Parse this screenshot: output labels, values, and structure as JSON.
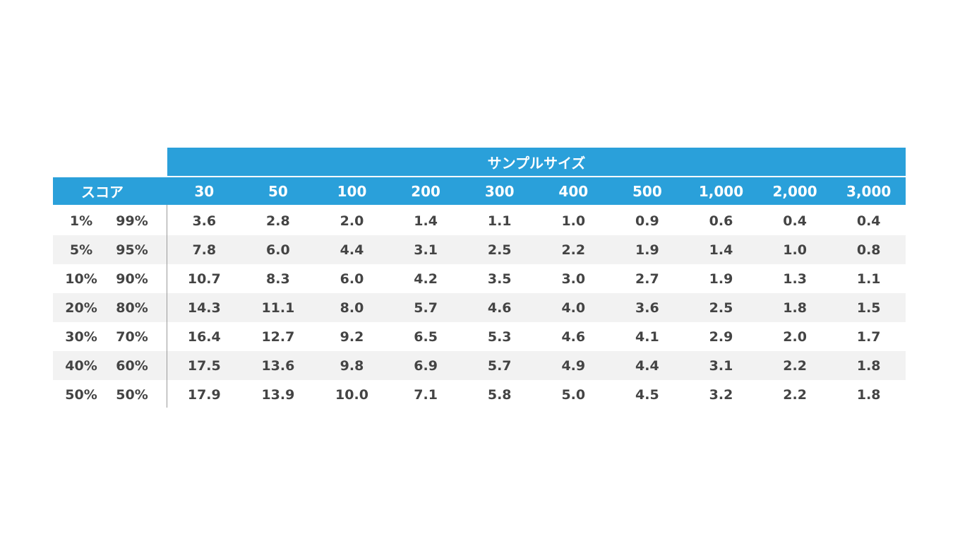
{
  "table": {
    "group_header": "サンプルサイズ",
    "row_header": "スコア",
    "columns": [
      "30",
      "50",
      "100",
      "200",
      "300",
      "400",
      "500",
      "1,000",
      "2,000",
      "3,000"
    ],
    "rows": [
      {
        "low": "1%",
        "high": "99%",
        "values": [
          "3.6",
          "2.8",
          "2.0",
          "1.4",
          "1.1",
          "1.0",
          "0.9",
          "0.6",
          "0.4",
          "0.4"
        ]
      },
      {
        "low": "5%",
        "high": "95%",
        "values": [
          "7.8",
          "6.0",
          "4.4",
          "3.1",
          "2.5",
          "2.2",
          "1.9",
          "1.4",
          "1.0",
          "0.8"
        ]
      },
      {
        "low": "10%",
        "high": "90%",
        "values": [
          "10.7",
          "8.3",
          "6.0",
          "4.2",
          "3.5",
          "3.0",
          "2.7",
          "1.9",
          "1.3",
          "1.1"
        ]
      },
      {
        "low": "20%",
        "high": "80%",
        "values": [
          "14.3",
          "11.1",
          "8.0",
          "5.7",
          "4.6",
          "4.0",
          "3.6",
          "2.5",
          "1.8",
          "1.5"
        ]
      },
      {
        "low": "30%",
        "high": "70%",
        "values": [
          "16.4",
          "12.7",
          "9.2",
          "6.5",
          "5.3",
          "4.6",
          "4.1",
          "2.9",
          "2.0",
          "1.7"
        ]
      },
      {
        "low": "40%",
        "high": "60%",
        "values": [
          "17.5",
          "13.6",
          "9.8",
          "6.9",
          "5.7",
          "4.9",
          "4.4",
          "3.1",
          "2.2",
          "1.8"
        ]
      },
      {
        "low": "50%",
        "high": "50%",
        "values": [
          "17.9",
          "13.9",
          "10.0",
          "7.1",
          "5.8",
          "5.0",
          "4.5",
          "3.2",
          "2.2",
          "1.8"
        ]
      }
    ]
  }
}
